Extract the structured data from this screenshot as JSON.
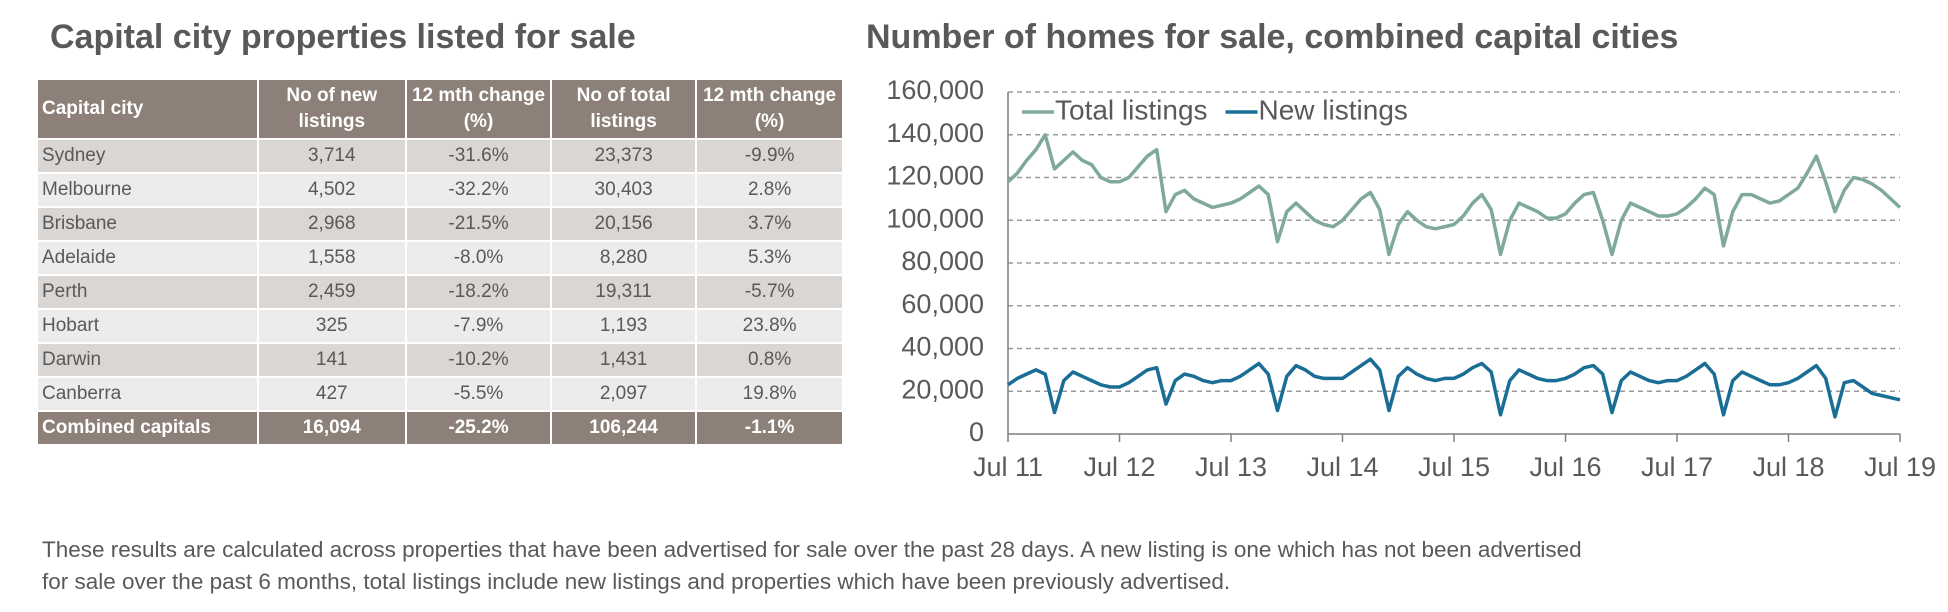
{
  "table": {
    "title": "Capital city properties listed for sale",
    "header": [
      "Capital city",
      "No of new listings",
      "12 mth change (%)",
      "No of total listings",
      "12 mth change (%)"
    ],
    "rows": [
      [
        "Sydney",
        "3,714",
        "-31.6%",
        "23,373",
        "-9.9%"
      ],
      [
        "Melbourne",
        "4,502",
        "-32.2%",
        "30,403",
        "2.8%"
      ],
      [
        "Brisbane",
        "2,968",
        "-21.5%",
        "20,156",
        "3.7%"
      ],
      [
        "Adelaide",
        "1,558",
        "-8.0%",
        "8,280",
        "5.3%"
      ],
      [
        "Perth",
        "2,459",
        "-18.2%",
        "19,311",
        "-5.7%"
      ],
      [
        "Hobart",
        "325",
        "-7.9%",
        "1,193",
        "23.8%"
      ],
      [
        "Darwin",
        "141",
        "-10.2%",
        "1,431",
        "0.8%"
      ],
      [
        "Canberra",
        "427",
        "-5.5%",
        "2,097",
        "19.8%"
      ]
    ],
    "total": [
      "Combined capitals",
      "16,094",
      "-25.2%",
      "106,244",
      "-1.1%"
    ]
  },
  "chart_data": {
    "type": "line",
    "title": "Number of homes for sale, combined capital cities",
    "x": [
      "Jul 11",
      "Aug 11",
      "Sep 11",
      "Oct 11",
      "Nov 11",
      "Dec 11",
      "Jan 12",
      "Feb 12",
      "Mar 12",
      "Apr 12",
      "May 12",
      "Jun 12",
      "Jul 12",
      "Aug 12",
      "Sep 12",
      "Oct 12",
      "Nov 12",
      "Dec 12",
      "Jan 13",
      "Feb 13",
      "Mar 13",
      "Apr 13",
      "May 13",
      "Jun 13",
      "Jul 13",
      "Aug 13",
      "Sep 13",
      "Oct 13",
      "Nov 13",
      "Dec 13",
      "Jan 14",
      "Feb 14",
      "Mar 14",
      "Apr 14",
      "May 14",
      "Jun 14",
      "Jul 14",
      "Aug 14",
      "Sep 14",
      "Oct 14",
      "Nov 14",
      "Dec 14",
      "Jan 15",
      "Feb 15",
      "Mar 15",
      "Apr 15",
      "May 15",
      "Jun 15",
      "Jul 15",
      "Aug 15",
      "Sep 15",
      "Oct 15",
      "Nov 15",
      "Dec 15",
      "Jan 16",
      "Feb 16",
      "Mar 16",
      "Apr 16",
      "May 16",
      "Jun 16",
      "Jul 16",
      "Aug 16",
      "Sep 16",
      "Oct 16",
      "Nov 16",
      "Dec 16",
      "Jan 17",
      "Feb 17",
      "Mar 17",
      "Apr 17",
      "May 17",
      "Jun 17",
      "Jul 17",
      "Aug 17",
      "Sep 17",
      "Oct 17",
      "Nov 17",
      "Dec 17",
      "Jan 18",
      "Feb 18",
      "Mar 18",
      "Apr 18",
      "May 18",
      "Jun 18",
      "Jul 18",
      "Aug 18",
      "Sep 18",
      "Oct 18",
      "Nov 18",
      "Dec 18",
      "Jan 19",
      "Feb 19",
      "Mar 19",
      "Apr 19",
      "May 19",
      "Jun 19",
      "Jul 19"
    ],
    "xticks": [
      0,
      12,
      24,
      36,
      48,
      60,
      72,
      84,
      96
    ],
    "series": [
      {
        "name": "Total listings",
        "color": "#7fa99b",
        "values": [
          118000,
          122000,
          128000,
          133000,
          140000,
          124000,
          128000,
          132000,
          128000,
          126000,
          120000,
          118000,
          118000,
          120000,
          125000,
          130000,
          133000,
          104000,
          112000,
          114000,
          110000,
          108000,
          106000,
          107000,
          108000,
          110000,
          113000,
          116000,
          112000,
          90000,
          104000,
          108000,
          104000,
          100000,
          98000,
          97000,
          100000,
          105000,
          110000,
          113000,
          105000,
          84000,
          98000,
          104000,
          100000,
          97000,
          96000,
          97000,
          98000,
          102000,
          108000,
          112000,
          105000,
          84000,
          100000,
          108000,
          106000,
          104000,
          101000,
          101000,
          103000,
          108000,
          112000,
          113000,
          100000,
          84000,
          100000,
          108000,
          106000,
          104000,
          102000,
          102000,
          103000,
          106000,
          110000,
          115000,
          112000,
          88000,
          104000,
          112000,
          112000,
          110000,
          108000,
          109000,
          112000,
          115000,
          122000,
          130000,
          118000,
          104000,
          114000,
          120000,
          119000,
          117000,
          114000,
          110000,
          106000
        ]
      },
      {
        "name": "New listings",
        "color": "#1a6e96",
        "values": [
          23000,
          26000,
          28000,
          30000,
          28000,
          10000,
          25000,
          29000,
          27000,
          25000,
          23000,
          22000,
          22000,
          24000,
          27000,
          30000,
          31000,
          14000,
          25000,
          28000,
          27000,
          25000,
          24000,
          25000,
          25000,
          27000,
          30000,
          33000,
          28000,
          11000,
          27000,
          32000,
          30000,
          27000,
          26000,
          26000,
          26000,
          29000,
          32000,
          35000,
          30000,
          11000,
          27000,
          31000,
          28000,
          26000,
          25000,
          26000,
          26000,
          28000,
          31000,
          33000,
          29000,
          9000,
          25000,
          30000,
          28000,
          26000,
          25000,
          25000,
          26000,
          28000,
          31000,
          32000,
          28000,
          10000,
          25000,
          29000,
          27000,
          25000,
          24000,
          25000,
          25000,
          27000,
          30000,
          33000,
          28000,
          9000,
          25000,
          29000,
          27000,
          25000,
          23000,
          23000,
          24000,
          26000,
          29000,
          32000,
          26000,
          8000,
          24000,
          25000,
          22000,
          19000,
          18000,
          17000,
          16000
        ]
      }
    ],
    "ylim": [
      0,
      160000
    ],
    "yticks": [
      0,
      {
        "value": 20000,
        "label": "20,000"
      },
      {
        "value": 40000,
        "label": "40,000"
      },
      {
        "value": 60000,
        "label": "60,000"
      },
      {
        "value": 80000,
        "label": "80,000"
      },
      {
        "value": 100000,
        "label": "100,000"
      },
      {
        "value": 120000,
        "label": "120,000"
      },
      {
        "value": 140000,
        "label": "140,000"
      },
      {
        "value": 160000,
        "label": "160,000"
      }
    ],
    "grid": true,
    "legend": "top-left"
  },
  "note": [
    "These results are calculated across properties that have been advertised for sale over the past 28 days.  A new listing is one which has not been advertised",
    "for sale over the past 6 months, total listings include new listings and properties which have been previously advertised."
  ]
}
